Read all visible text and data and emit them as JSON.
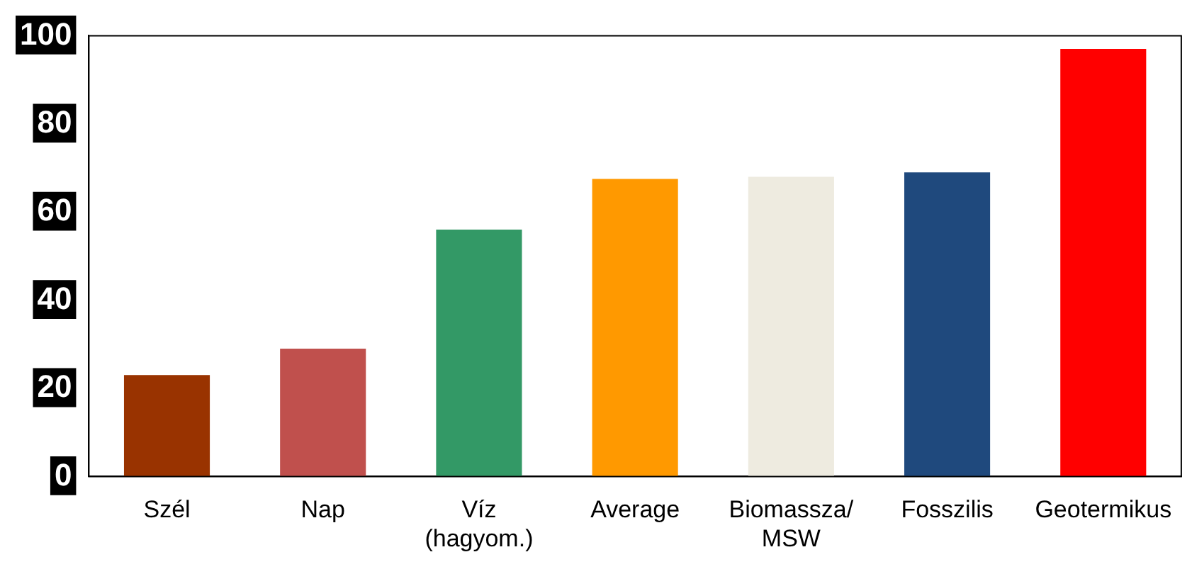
{
  "chart_data": {
    "type": "bar",
    "categories": [
      "Szél",
      "Nap",
      "Víz (hagyom.)",
      "Average",
      "Biomassza/ MSW",
      "Fosszilis",
      "Geotermikus"
    ],
    "values": [
      23,
      29,
      56,
      67.5,
      68,
      69,
      97
    ],
    "colors": [
      "#993300",
      "#c0504d",
      "#339966",
      "#ff9900",
      "#eeebe0",
      "#1f497d",
      "#ff0000"
    ],
    "ylim": [
      0,
      100
    ],
    "yticks": [
      0,
      20,
      40,
      60,
      80,
      100
    ],
    "grid": false,
    "legend": false
  }
}
